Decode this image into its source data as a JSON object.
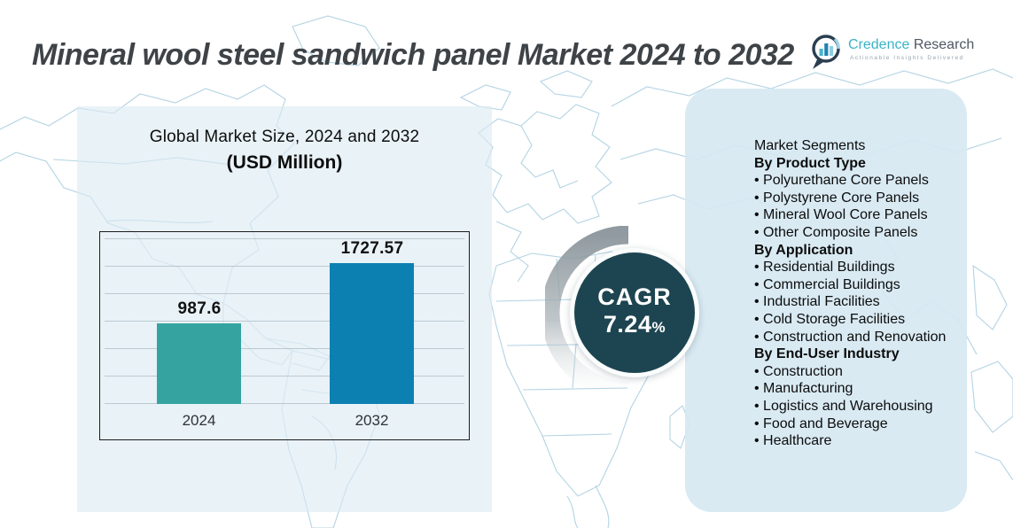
{
  "header": {
    "title": "Mineral wool steel sandwich panel Market 2024 to 2032"
  },
  "logo": {
    "brand_primary": "Credence",
    "brand_secondary": "Research",
    "tagline": "Actionable Insights Delivered"
  },
  "chart": {
    "title": "Global Market Size, 2024 and 2032",
    "subtitle": "(USD Million)"
  },
  "chart_data": {
    "type": "bar",
    "title": "Global Market Size, 2024 and 2032",
    "units_label": "(USD Million)",
    "categories": [
      "2024",
      "2032"
    ],
    "values": [
      987.6,
      1727.57
    ],
    "value_labels": [
      "987.6",
      "1727.57"
    ],
    "bar_colors": [
      "#35a4a0",
      "#0d80b2"
    ],
    "ylim": [
      0,
      1800
    ],
    "grid": true,
    "legend": false,
    "annotations": [
      "CAGR 7.24%"
    ]
  },
  "cagr": {
    "label": "CAGR",
    "value": "7.24",
    "percent": "%"
  },
  "segments": {
    "title": "Market Segments",
    "groups": [
      {
        "heading": "By Product Type",
        "items": [
          "Polyurethane Core Panels",
          "Polystyrene Core Panels",
          "Mineral Wool Core Panels",
          "Other Composite Panels"
        ]
      },
      {
        "heading": "By Application",
        "items": [
          "Residential Buildings",
          "Commercial Buildings",
          "Industrial Facilities",
          "Cold Storage Facilities",
          "Construction and Renovation"
        ]
      },
      {
        "heading": "By End-User Industry",
        "items": [
          "Construction",
          "Manufacturing",
          "Logistics and Warehousing",
          "Food and Beverage",
          "Healthcare"
        ]
      }
    ]
  },
  "colors": {
    "bar_2024": "#35a4a0",
    "bar_2032": "#0d80b2",
    "cagr_circle": "#1d4551",
    "brand_teal": "#3ab3c8",
    "panel_left": "#dbeaf2",
    "panel_right": "#d6e8f2",
    "map_line": "#afd1e2"
  }
}
